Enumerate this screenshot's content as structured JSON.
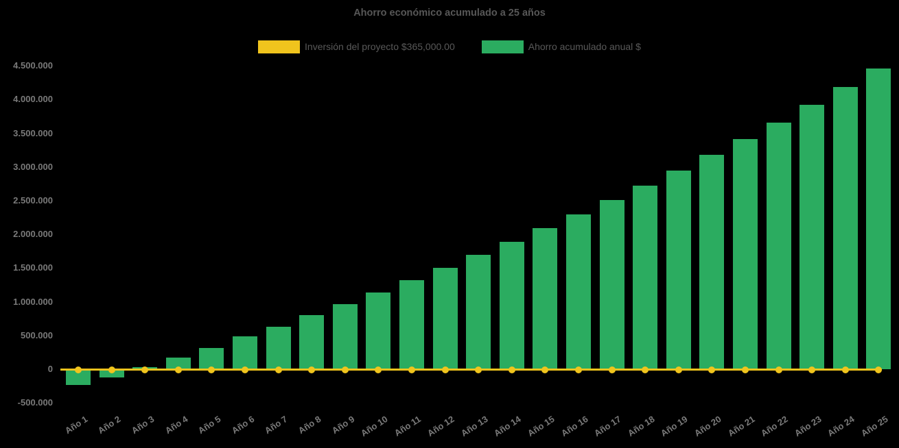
{
  "chart_data": {
    "type": "bar",
    "title": "Ahorro económico acumulado a 25 años",
    "categories": [
      "Año 1",
      "Año 2",
      "Año 3",
      "Año 4",
      "Año 5",
      "Año 6",
      "Año 7",
      "Año 8",
      "Año 9",
      "Año 10",
      "Año 11",
      "Año 12",
      "Año 13",
      "Año 14",
      "Año 15",
      "Año 16",
      "Año 17",
      "Año 18",
      "Año 19",
      "Año 20",
      "Año 21",
      "Año 22",
      "Año 23",
      "Año 24",
      "Año 25"
    ],
    "series": [
      {
        "name": "Inversión del proyecto $365,000.00",
        "type": "line",
        "color": "#F0C41D",
        "constant_value": 0,
        "marker": "circle"
      },
      {
        "name": "Ahorro acumulado anual $",
        "type": "bar",
        "color": "#2BAC60",
        "values": [
          -235000,
          -125000,
          30000,
          175000,
          320000,
          490000,
          635000,
          800000,
          965000,
          1135000,
          1320000,
          1500000,
          1695000,
          1890000,
          2090000,
          2295000,
          2510000,
          2725000,
          2950000,
          3185000,
          3415000,
          3660000,
          3920000,
          4185000,
          4460000
        ]
      }
    ],
    "ylim": [
      -500000,
      4500000
    ],
    "y_tick_step": 500000,
    "y_tick_labels": [
      "4.500.000",
      "4.000.000",
      "3.500.000",
      "3.000.000",
      "2.500.000",
      "2.000.000",
      "1.500.000",
      "1.000.000",
      "500.000",
      "0",
      "-500.000"
    ],
    "xlabel": "",
    "ylabel": "",
    "grid": false,
    "legend_position": "top",
    "x_label_rotation_deg": -33,
    "colors": {
      "background": "#000000",
      "title_text": "#575757",
      "legend_text": "#595959",
      "axis_text": "#7A7A7A"
    }
  }
}
